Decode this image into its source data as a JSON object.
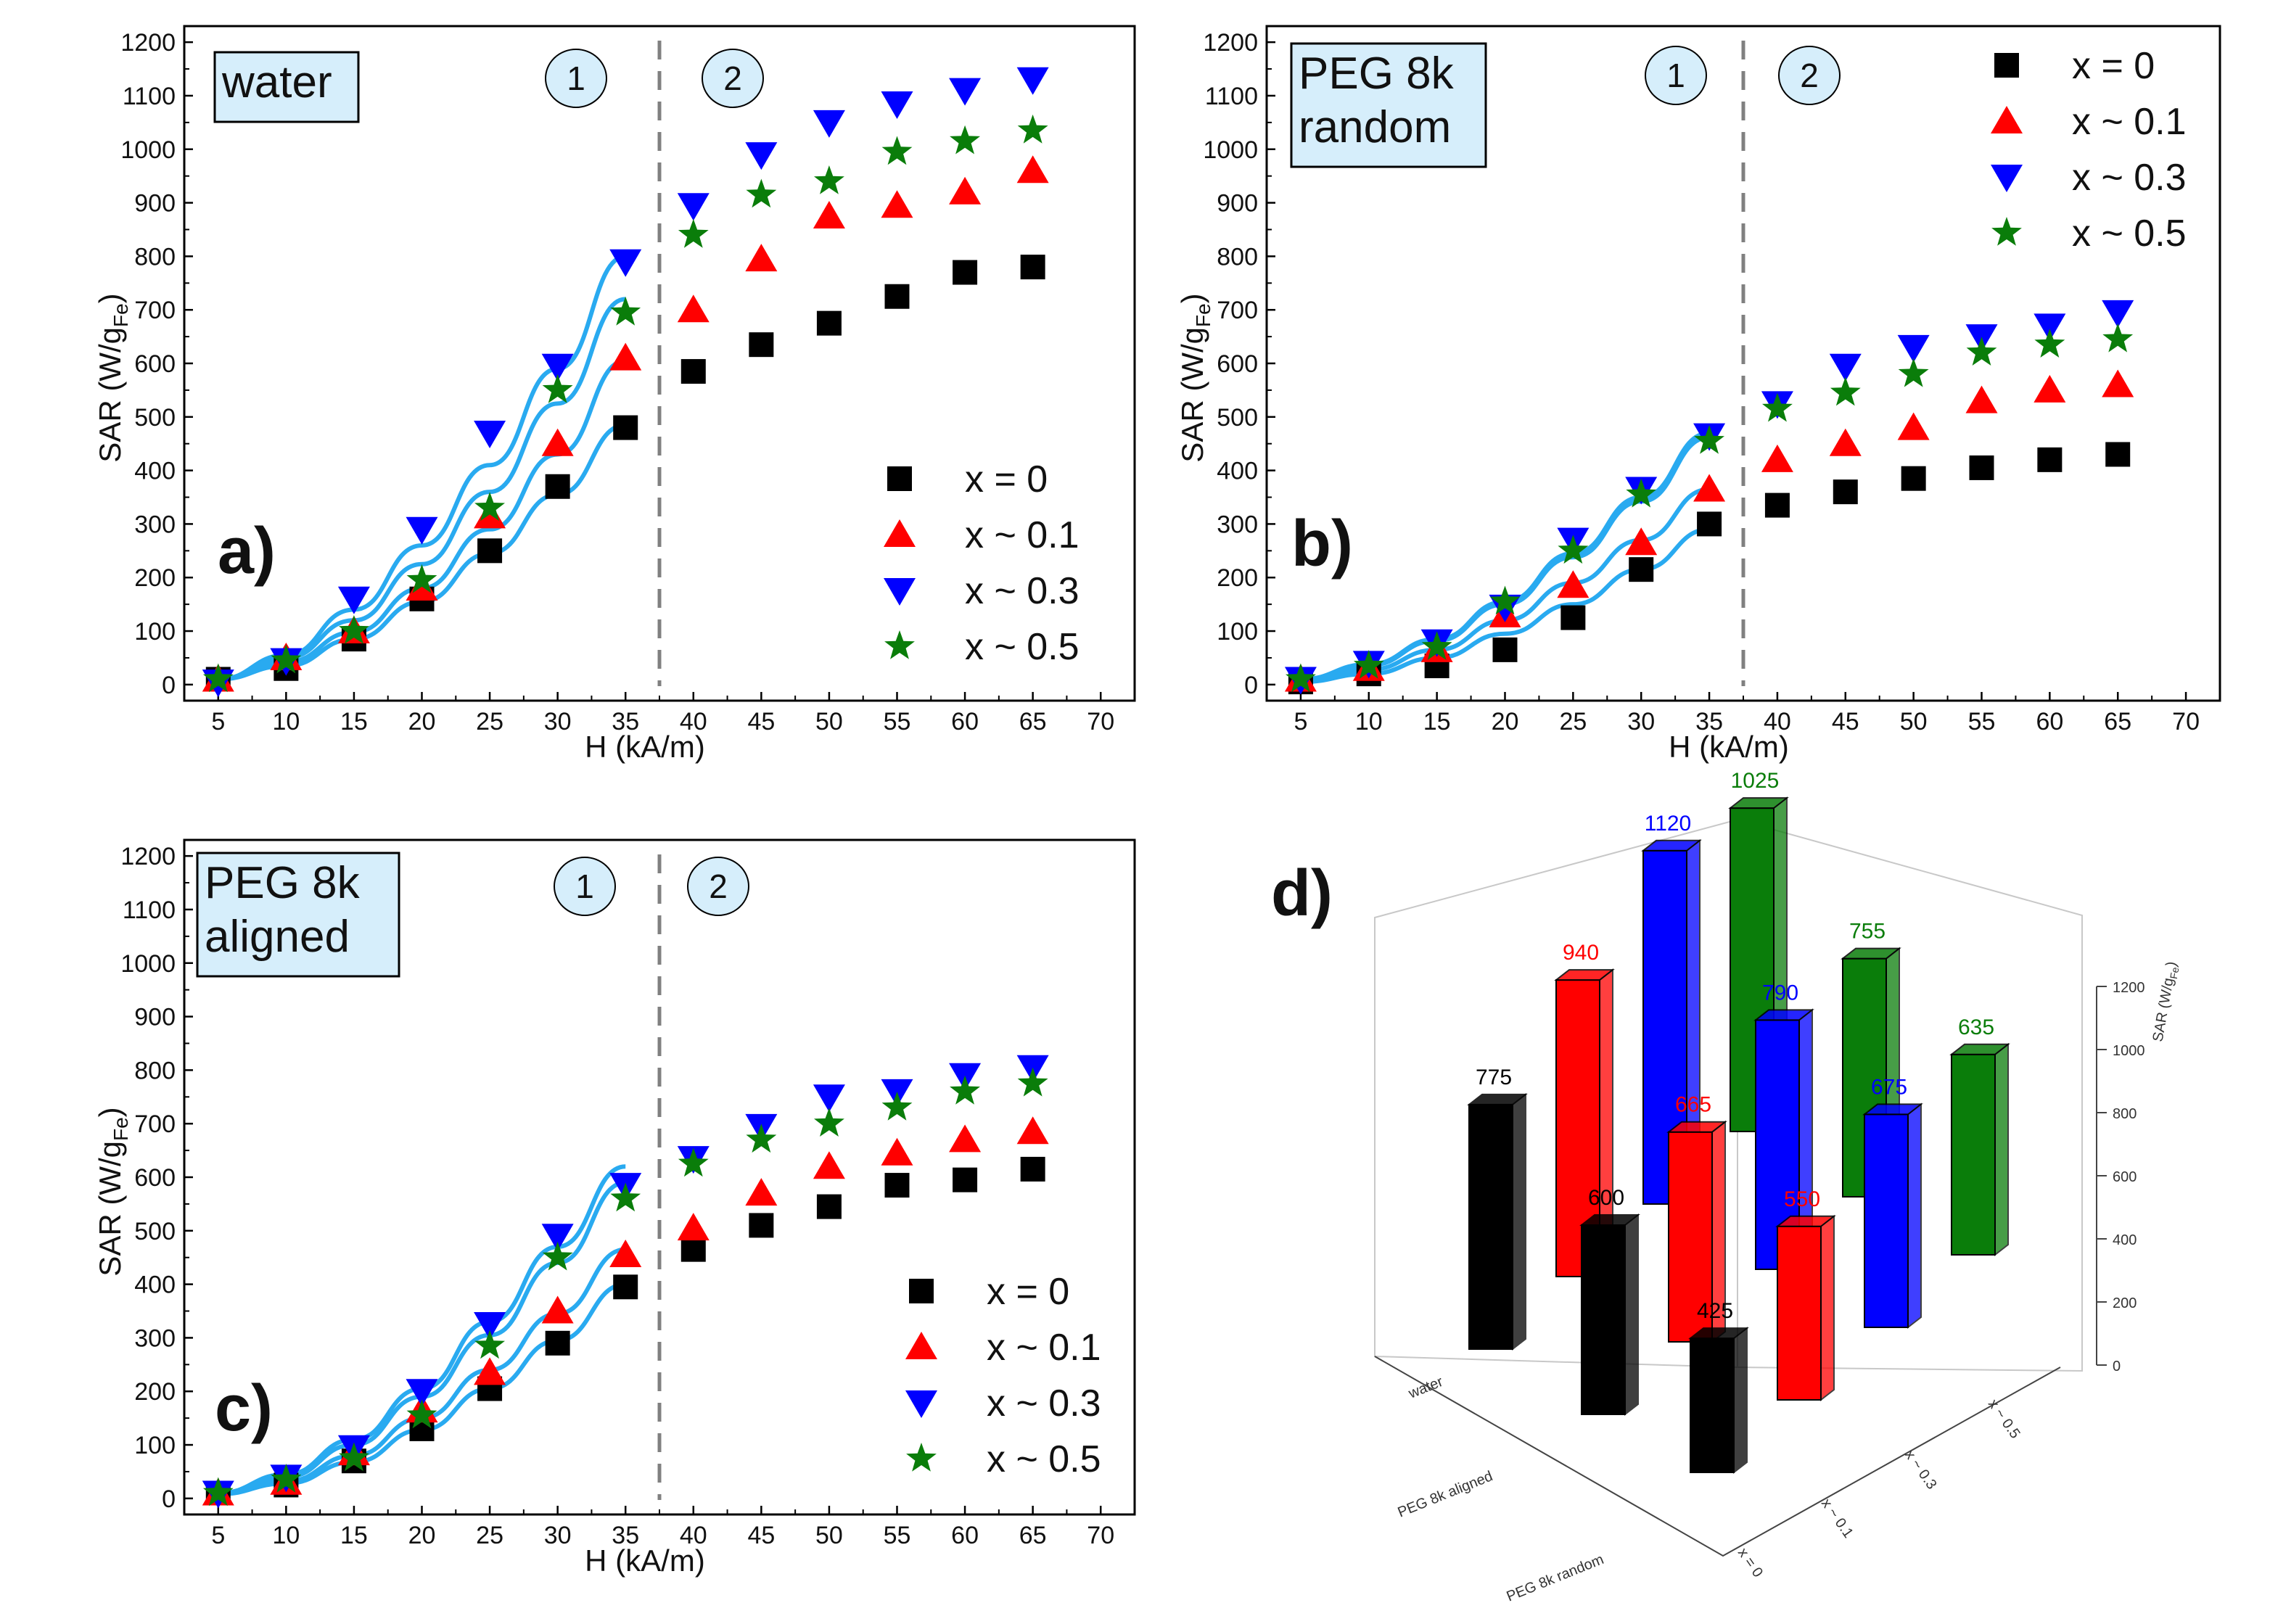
{
  "colors": {
    "x0": "#000000",
    "x01": "#ff0000",
    "x03": "#0000ff",
    "x05": "#0a7d0a",
    "fit": "#29aaf0",
    "box_fill": "#d6eefb",
    "circle_fill": "#d6eefb",
    "divider": "#808080"
  },
  "legend_labels": [
    "x = 0",
    "x ~ 0.1",
    "x ~ 0.3",
    "x ~ 0.5"
  ],
  "chart_data": [
    {
      "id": "a",
      "type": "scatter",
      "panel_label": "a)",
      "medium": [
        "water"
      ],
      "regions": [
        "1",
        "2"
      ],
      "divider_x": 37.5,
      "xlabel": "H (kA/m)",
      "ylabel": "SAR (W/g",
      "ylabel_sub": "Fe",
      "ylabel_end": ")",
      "xlim": [
        2.5,
        72.5
      ],
      "ylim": [
        -30,
        1230
      ],
      "xticks": [
        5,
        10,
        15,
        20,
        25,
        30,
        35,
        40,
        45,
        50,
        55,
        60,
        65,
        70
      ],
      "yticks": [
        0,
        100,
        200,
        300,
        400,
        500,
        600,
        700,
        800,
        900,
        1000,
        1100,
        1200
      ],
      "legend_position": "bottom-right",
      "x": [
        5,
        10,
        15,
        20,
        25,
        30,
        35,
        40,
        45,
        50,
        55,
        60,
        65
      ],
      "series": [
        {
          "name": "x = 0",
          "marker": "square",
          "values": [
            10,
            30,
            85,
            160,
            250,
            370,
            480,
            585,
            635,
            675,
            725,
            770,
            780
          ]
        },
        {
          "name": "x ~ 0.1",
          "marker": "triangle-up",
          "values": [
            10,
            50,
            100,
            180,
            315,
            450,
            610,
            700,
            795,
            875,
            895,
            920,
            960
          ]
        },
        {
          "name": "x ~ 0.3",
          "marker": "triangle-down",
          "values": [
            5,
            45,
            160,
            290,
            470,
            595,
            790,
            895,
            990,
            1050,
            1085,
            1110,
            1130
          ]
        },
        {
          "name": "x ~ 0.5",
          "marker": "star",
          "values": [
            10,
            45,
            100,
            195,
            330,
            550,
            695,
            840,
            915,
            940,
            995,
            1015,
            1035
          ]
        }
      ],
      "fits": [
        {
          "name": "x = 0",
          "values": [
            10,
            35,
            85,
            155,
            245,
            355,
            485
          ]
        },
        {
          "name": "x ~ 0.1",
          "values": [
            10,
            42,
            98,
            180,
            290,
            430,
            605
          ]
        },
        {
          "name": "x ~ 0.3",
          "values": [
            10,
            55,
            140,
            260,
            410,
            590,
            800
          ]
        },
        {
          "name": "x ~ 0.5",
          "values": [
            10,
            50,
            120,
            225,
            360,
            525,
            720
          ]
        }
      ]
    },
    {
      "id": "b",
      "type": "scatter",
      "panel_label": "b)",
      "medium": [
        "PEG 8k",
        "random"
      ],
      "regions": [
        "1",
        "2"
      ],
      "divider_x": 37.5,
      "xlabel": "H (kA/m)",
      "ylabel": "SAR (W/g",
      "ylabel_sub": "Fe",
      "ylabel_end": ")",
      "xlim": [
        2.5,
        72.5
      ],
      "ylim": [
        -30,
        1230
      ],
      "xticks": [
        5,
        10,
        15,
        20,
        25,
        30,
        35,
        40,
        45,
        50,
        55,
        60,
        65,
        70
      ],
      "yticks": [
        0,
        100,
        200,
        300,
        400,
        500,
        600,
        700,
        800,
        900,
        1000,
        1100,
        1200
      ],
      "legend_position": "top-right",
      "x": [
        5,
        10,
        15,
        20,
        25,
        30,
        35,
        40,
        45,
        50,
        55,
        60,
        65
      ],
      "series": [
        {
          "name": "x = 0",
          "marker": "square",
          "values": [
            5,
            20,
            35,
            65,
            125,
            215,
            300,
            335,
            360,
            385,
            405,
            420,
            430
          ]
        },
        {
          "name": "x ~ 0.1",
          "marker": "triangle-up",
          "values": [
            10,
            30,
            65,
            130,
            185,
            265,
            365,
            420,
            450,
            480,
            530,
            550,
            560
          ]
        },
        {
          "name": "x ~ 0.3",
          "marker": "triangle-down",
          "values": [
            10,
            40,
            80,
            145,
            270,
            365,
            465,
            525,
            595,
            630,
            650,
            670,
            695
          ]
        },
        {
          "name": "x ~ 0.5",
          "marker": "star",
          "values": [
            10,
            35,
            70,
            155,
            250,
            355,
            455,
            515,
            545,
            580,
            620,
            635,
            645
          ]
        }
      ],
      "fits": [
        {
          "name": "x = 0",
          "values": [
            5,
            20,
            50,
            95,
            150,
            215,
            290
          ]
        },
        {
          "name": "x ~ 0.1",
          "values": [
            8,
            28,
            65,
            120,
            190,
            270,
            365
          ]
        },
        {
          "name": "x ~ 0.3",
          "values": [
            10,
            38,
            85,
            155,
            245,
            350,
            470
          ]
        },
        {
          "name": "x ~ 0.5",
          "values": [
            10,
            36,
            82,
            150,
            238,
            342,
            462
          ]
        }
      ]
    },
    {
      "id": "c",
      "type": "scatter",
      "panel_label": "c)",
      "medium": [
        "PEG 8k",
        "aligned"
      ],
      "regions": [
        "1",
        "2"
      ],
      "divider_x": 37.5,
      "xlabel": "H (kA/m)",
      "ylabel": "SAR (W/g",
      "ylabel_sub": "Fe",
      "ylabel_end": ")",
      "xlim": [
        2.5,
        72.5
      ],
      "ylim": [
        -30,
        1230
      ],
      "xticks": [
        5,
        10,
        15,
        20,
        25,
        30,
        35,
        40,
        45,
        50,
        55,
        60,
        65,
        70
      ],
      "yticks": [
        0,
        100,
        200,
        300,
        400,
        500,
        600,
        700,
        800,
        900,
        1000,
        1100,
        1200
      ],
      "legend_position": "bottom-right",
      "x": [
        5,
        10,
        15,
        20,
        25,
        30,
        35,
        40,
        45,
        50,
        55,
        60,
        65
      ],
      "series": [
        {
          "name": "x = 0",
          "marker": "square",
          "values": [
            10,
            25,
            70,
            130,
            205,
            290,
            395,
            465,
            510,
            545,
            585,
            595,
            615
          ]
        },
        {
          "name": "x ~ 0.1",
          "marker": "triangle-up",
          "values": [
            10,
            30,
            85,
            165,
            235,
            350,
            455,
            505,
            570,
            620,
            645,
            670,
            685
          ]
        },
        {
          "name": "x ~ 0.3",
          "marker": "triangle-down",
          "values": [
            10,
            40,
            95,
            200,
            325,
            490,
            585,
            635,
            695,
            750,
            760,
            790,
            805
          ]
        },
        {
          "name": "x ~ 0.5",
          "marker": "star",
          "values": [
            10,
            35,
            75,
            155,
            285,
            450,
            560,
            625,
            670,
            700,
            730,
            760,
            775
          ]
        }
      ],
      "fits": [
        {
          "name": "x = 0",
          "values": [
            8,
            28,
            68,
            128,
            205,
            295,
            400
          ]
        },
        {
          "name": "x ~ 0.1",
          "values": [
            8,
            32,
            80,
            150,
            240,
            345,
            465
          ]
        },
        {
          "name": "x ~ 0.3",
          "values": [
            10,
            45,
            110,
            205,
            330,
            470,
            620
          ]
        },
        {
          "name": "x ~ 0.5",
          "values": [
            10,
            40,
            100,
            190,
            305,
            440,
            590
          ]
        }
      ]
    },
    {
      "id": "d",
      "type": "bar3d",
      "panel_label": "d)",
      "rows": [
        "water",
        "PEG 8k aligned",
        "PEG 8k random"
      ],
      "columns": [
        "x = 0",
        "x ~ 0.1",
        "x ~ 0.3",
        "x ~ 0.5"
      ],
      "values": [
        [
          775,
          940,
          1120,
          1025
        ],
        [
          600,
          665,
          790,
          755
        ],
        [
          425,
          550,
          675,
          635
        ]
      ],
      "zlabel": "SAR (W/g",
      "zlabel_sub": "Fe",
      "zlabel_end": ")",
      "zticks": [
        0,
        200,
        400,
        600,
        800,
        1000,
        1200
      ]
    }
  ]
}
